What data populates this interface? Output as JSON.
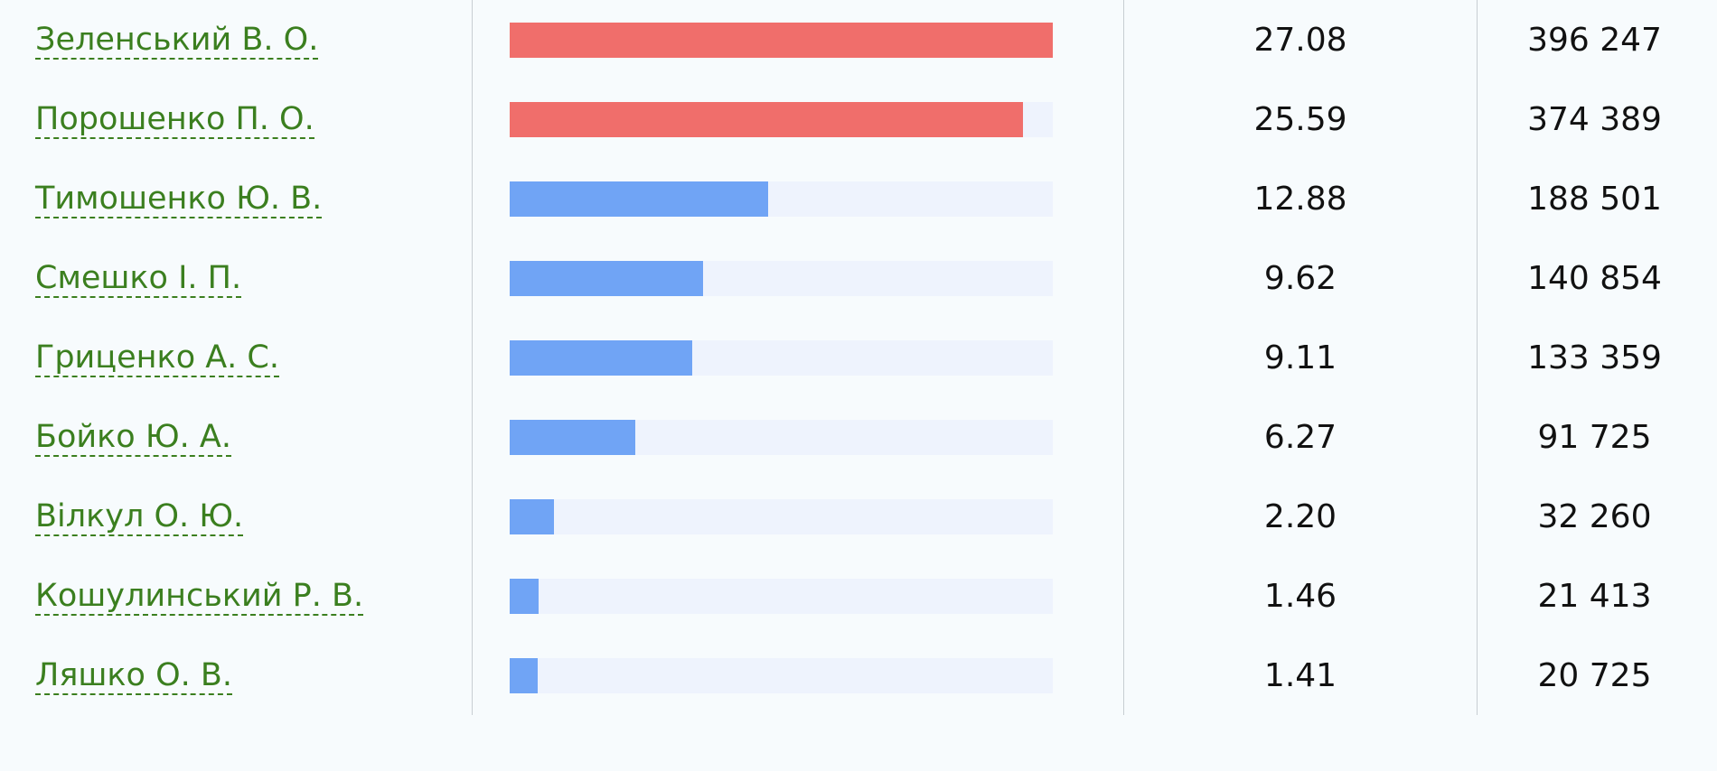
{
  "table": {
    "rows": [
      {
        "name": "Зеленський В. О.",
        "percent": {
          "value": 27.08,
          "label": "27.08"
        },
        "votes": "396 247",
        "color": "#f06e6b"
      },
      {
        "name": "Порошенко П. О.",
        "percent": {
          "value": 25.59,
          "label": "25.59"
        },
        "votes": "374 389",
        "color": "#f06e6b"
      },
      {
        "name": "Тимошенко Ю. В.",
        "percent": {
          "value": 12.88,
          "label": "12.88"
        },
        "votes": "188 501",
        "color": "#70a4f5"
      },
      {
        "name": "Смешко І. П.",
        "percent": {
          "value": 9.62,
          "label": "9.62"
        },
        "votes": "140 854",
        "color": "#70a4f5"
      },
      {
        "name": "Гриценко А. С.",
        "percent": {
          "value": 9.11,
          "label": "9.11"
        },
        "votes": "133 359",
        "color": "#70a4f5"
      },
      {
        "name": "Бойко Ю. А.",
        "percent": {
          "value": 6.27,
          "label": "6.27"
        },
        "votes": "91 725",
        "color": "#70a4f5"
      },
      {
        "name": "Вілкул О. Ю.",
        "percent": {
          "value": 2.2,
          "label": "2.20"
        },
        "votes": "32 260",
        "color": "#70a4f5"
      },
      {
        "name": "Кошулинський Р. В.",
        "percent": {
          "value": 1.46,
          "label": "1.46"
        },
        "votes": "21 413",
        "color": "#70a4f5"
      },
      {
        "name": "Ляшко О. В.",
        "percent": {
          "value": 1.41,
          "label": "1.41"
        },
        "votes": "20 725",
        "color": "#70a4f5"
      }
    ]
  }
}
